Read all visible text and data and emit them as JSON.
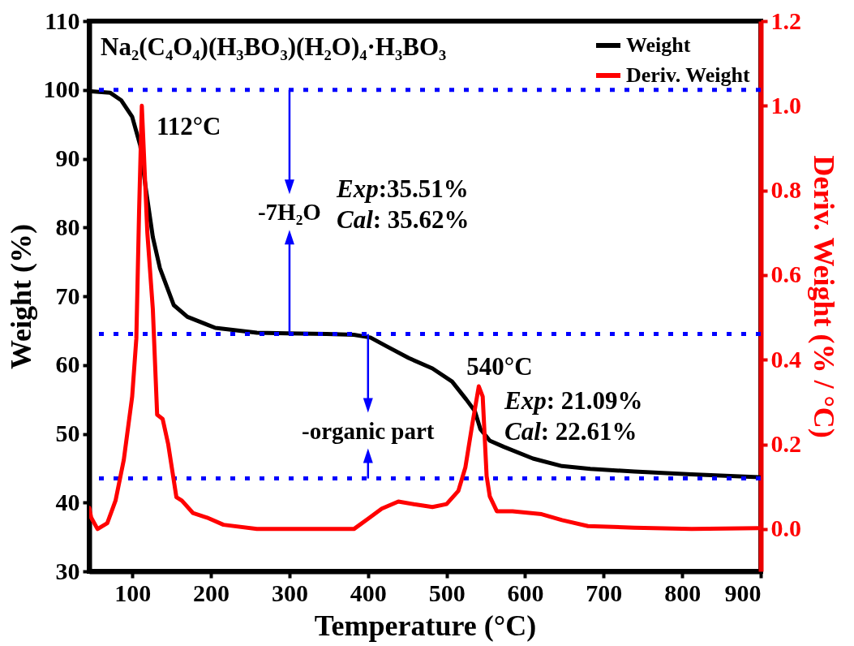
{
  "chart_data": {
    "type": "line",
    "title": "Na₂(C₄O₄)(H₃BO₃)(H₂O)₄·H₃BO₃",
    "xlabel": "Temperature (°C)",
    "ylabel": "Weight (%)",
    "y2label": "Deriv. Weight (% / °C)",
    "xlim": [
      45,
      900
    ],
    "xticks": [
      100,
      200,
      300,
      400,
      500,
      600,
      700,
      800,
      900
    ],
    "ylim": [
      30,
      110
    ],
    "yticks": [
      30,
      40,
      50,
      60,
      70,
      80,
      90,
      100,
      110
    ],
    "y2lim": [
      -0.1,
      1.2
    ],
    "y2ticks": [
      {
        "value": 0,
        "label": "0.0"
      },
      {
        "value": 0.2,
        "label": "0.2"
      },
      {
        "value": 0.4,
        "label": "0.4"
      },
      {
        "value": 0.6,
        "label": "0.6"
      },
      {
        "value": 0.8,
        "label": "0.8"
      },
      {
        "value": 1,
        "label": "1.0"
      },
      {
        "value": 1.2,
        "label": "1.2"
      }
    ],
    "grid": false,
    "legend": "top right",
    "line_style": "solid",
    "series": [
      {
        "name": "Weight",
        "color": "#000000",
        "x": [
          47,
          71.5,
          85.6,
          99.7,
          110,
          117,
          126,
          135,
          152.7,
          170,
          205.6,
          258.5,
          297,
          347,
          382,
          403,
          424,
          452,
          482,
          507,
          525,
          536,
          543,
          555,
          573,
          610,
          647,
          683,
          739,
          812,
          898
        ],
        "values": [
          99.8,
          99.6,
          98.5,
          96.1,
          91.9,
          85.7,
          78.6,
          74.1,
          68.7,
          67,
          65.4,
          64.7,
          64.6,
          64.5,
          64.4,
          64.0,
          62.7,
          61,
          59.5,
          57.6,
          55,
          53.3,
          50.7,
          49,
          48.1,
          46.4,
          45.3,
          44.9,
          44.5,
          44.1,
          43.7
        ]
      },
      {
        "name": "Deriv. Weight",
        "color": "#ff0000",
        "axis": "y2",
        "x": [
          45,
          47.5,
          55.6,
          68,
          78.5,
          89,
          99.7,
          105,
          108.5,
          112,
          115.5,
          119,
          126,
          131.5,
          138.5,
          145.6,
          156,
          163,
          177,
          195,
          216,
          258.5,
          311,
          364,
          382,
          400,
          417.5,
          438.6,
          460,
          482,
          500,
          515,
          524,
          533,
          541,
          546,
          551,
          555,
          564,
          584,
          621,
          647,
          680,
          739,
          812,
          898
        ],
        "values": [
          0.05,
          0.027,
          0.0,
          0.014,
          0.067,
          0.163,
          0.313,
          0.45,
          0.75,
          1.0,
          0.85,
          0.7,
          0.52,
          0.27,
          0.26,
          0.2,
          0.075,
          0.067,
          0.038,
          0.027,
          0.01,
          0.0,
          0.0,
          0.0,
          0.0,
          0.024,
          0.048,
          0.065,
          0.058,
          0.052,
          0.059,
          0.09,
          0.146,
          0.25,
          0.337,
          0.313,
          0.125,
          0.077,
          0.042,
          0.042,
          0.035,
          0.021,
          0.007,
          0.003,
          0.0,
          0.002
        ]
      }
    ],
    "ref_lines": [
      {
        "axis": "y",
        "value": 100,
        "color": "#0000ff",
        "line_style": "dotted"
      },
      {
        "axis": "y",
        "value": 64.5,
        "color": "#0000ff",
        "line_style": "dotted"
      },
      {
        "axis": "y",
        "value": 43.5,
        "color": "#0000ff",
        "line_style": "dotted"
      }
    ],
    "annotations": [
      {
        "text": "112°C",
        "x": 112,
        "y": 97.7
      },
      {
        "text": "-7H₂O",
        "x": 300,
        "y": 64.5
      },
      "Exp:35.51%",
      "Cal: 35.62%",
      {
        "text": "540°C",
        "x": 540,
        "y": 56.9
      },
      {
        "text": "-organic part",
        "x": 400,
        "y": 43.5
      },
      "Exp: 21.09%",
      "Cal: 22.61%"
    ]
  }
}
